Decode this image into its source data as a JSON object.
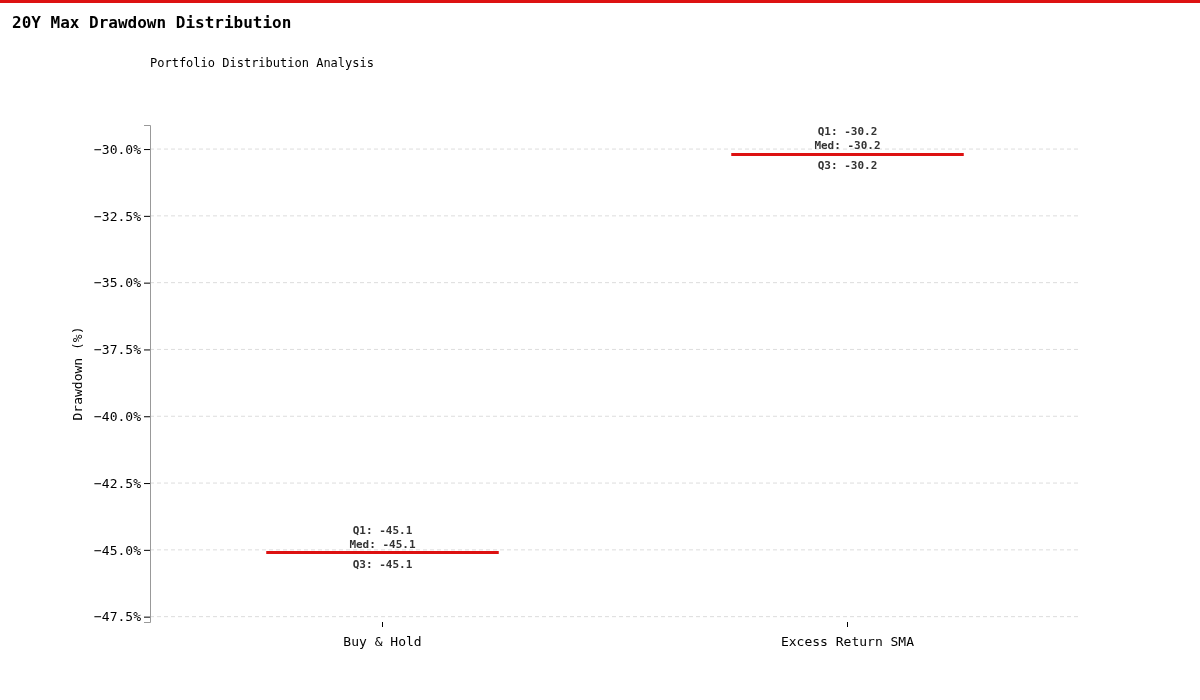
{
  "chart_data": {
    "type": "box",
    "title": "20Y Max Drawdown Distribution",
    "subtitle": "Portfolio Distribution Analysis",
    "ylabel": "Drawdown (%)",
    "categories": [
      "Buy & Hold",
      "Excess Return SMA"
    ],
    "boxes": [
      {
        "low": -45.1,
        "q1": -45.1,
        "median": -45.1,
        "q3": -45.1,
        "high": -45.1
      },
      {
        "low": -30.2,
        "q1": -30.2,
        "median": -30.2,
        "q3": -30.2,
        "high": -30.2
      }
    ],
    "color": "#dd1111",
    "ylim": [
      -47.7,
      -29.1
    ],
    "yticks": [
      {
        "value": -30,
        "label": "−30.0%"
      },
      {
        "value": -32.5,
        "label": "−32.5%"
      },
      {
        "value": -35,
        "label": "−35.0%"
      },
      {
        "value": -37.5,
        "label": "−37.5%"
      },
      {
        "value": -40,
        "label": "−40.0%"
      },
      {
        "value": -42.5,
        "label": "−42.5%"
      },
      {
        "value": -45,
        "label": "−45.0%"
      },
      {
        "value": -47.5,
        "label": "−47.5%"
      }
    ],
    "grid": "y",
    "annotations": [
      {
        "text": "Q1: -45.1",
        "x": "Buy & Hold",
        "y": -45.1
      },
      {
        "text": "Med: -45.1",
        "x": "Buy & Hold",
        "y": -45.1
      },
      {
        "text": "Q3: -45.1",
        "x": "Buy & Hold",
        "y": -45.1
      },
      {
        "text": "Q1: -30.2",
        "x": "Excess Return SMA",
        "y": -30.2
      },
      {
        "text": "Med: -30.2",
        "x": "Excess Return SMA",
        "y": -30.2
      },
      {
        "text": "Q3: -30.2",
        "x": "Excess Return SMA",
        "y": -30.2
      }
    ]
  }
}
